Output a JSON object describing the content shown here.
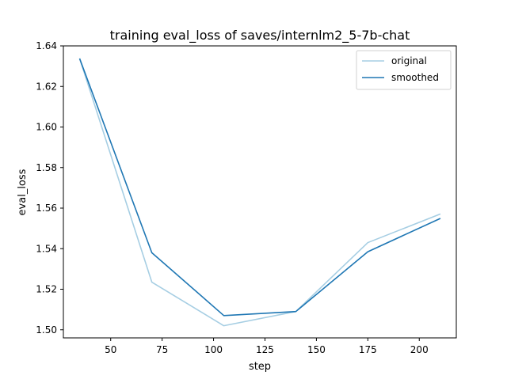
{
  "chart_data": {
    "type": "line",
    "title": "training eval_loss of saves/internlm2_5-7b-chat",
    "xlabel": "step",
    "ylabel": "eval_loss",
    "xlim": [
      27,
      218
    ],
    "ylim": [
      1.496,
      1.64
    ],
    "xticks": [
      50,
      75,
      100,
      125,
      150,
      175,
      200
    ],
    "yticks": [
      1.5,
      1.52,
      1.54,
      1.56,
      1.58,
      1.6,
      1.62,
      1.64
    ],
    "ytick_labels": [
      "1.50",
      "1.52",
      "1.54",
      "1.56",
      "1.58",
      "1.60",
      "1.62",
      "1.64"
    ],
    "grid": false,
    "legend_position": "top-right",
    "x": [
      35,
      70,
      105,
      140,
      175,
      210
    ],
    "series": [
      {
        "name": "original",
        "color": "#a6cee3",
        "values": [
          1.6335,
          1.5235,
          1.502,
          1.509,
          1.543,
          1.557
        ]
      },
      {
        "name": "smoothed",
        "color": "#1f77b4",
        "values": [
          1.6335,
          1.538,
          1.507,
          1.509,
          1.5385,
          1.5548
        ]
      }
    ]
  }
}
